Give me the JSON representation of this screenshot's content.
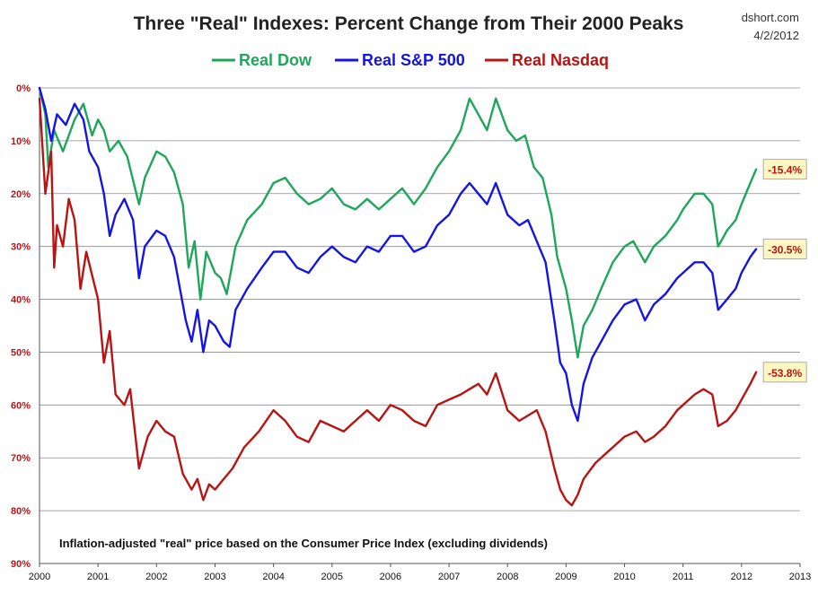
{
  "chart_data": {
    "type": "line",
    "title": "Three \"Real\" Indexes: Percent Change from Their 2000 Peaks",
    "source": "dshort.com",
    "date": "4/2/2012",
    "note": "Inflation-adjusted \"real\" price based on the Consumer Price Index (excluding dividends)",
    "xlim": [
      2000,
      2013
    ],
    "ylim": [
      0,
      90
    ],
    "y_inverted": true,
    "x_ticks": [
      "2000",
      "2001",
      "2002",
      "2003",
      "2004",
      "2005",
      "2006",
      "2007",
      "2008",
      "2009",
      "2010",
      "2011",
      "2012",
      "2013"
    ],
    "y_ticks": [
      "0%",
      "10%",
      "20%",
      "30%",
      "40%",
      "50%",
      "60%",
      "70%",
      "80%",
      "90%"
    ],
    "grid": true,
    "legend_position": "top-center",
    "series": [
      {
        "name": "Real Dow",
        "color": "#1ea65a",
        "end_label": "-15.4%",
        "points": [
          [
            2000.0,
            0
          ],
          [
            2000.1,
            5
          ],
          [
            2000.15,
            15
          ],
          [
            2000.25,
            8
          ],
          [
            2000.4,
            12
          ],
          [
            2000.6,
            6
          ],
          [
            2000.75,
            3
          ],
          [
            2000.9,
            9
          ],
          [
            2001.0,
            6
          ],
          [
            2001.1,
            8
          ],
          [
            2001.2,
            12
          ],
          [
            2001.35,
            10
          ],
          [
            2001.5,
            13
          ],
          [
            2001.7,
            22
          ],
          [
            2001.8,
            17
          ],
          [
            2002.0,
            12
          ],
          [
            2002.15,
            13
          ],
          [
            2002.3,
            16
          ],
          [
            2002.45,
            22
          ],
          [
            2002.55,
            34
          ],
          [
            2002.65,
            29
          ],
          [
            2002.75,
            40
          ],
          [
            2002.85,
            31
          ],
          [
            2003.0,
            35
          ],
          [
            2003.1,
            36
          ],
          [
            2003.2,
            39
          ],
          [
            2003.35,
            30
          ],
          [
            2003.55,
            25
          ],
          [
            2003.8,
            22
          ],
          [
            2004.0,
            18
          ],
          [
            2004.2,
            17
          ],
          [
            2004.4,
            20
          ],
          [
            2004.6,
            22
          ],
          [
            2004.8,
            21
          ],
          [
            2005.0,
            19
          ],
          [
            2005.2,
            22
          ],
          [
            2005.4,
            23
          ],
          [
            2005.6,
            21
          ],
          [
            2005.8,
            23
          ],
          [
            2006.0,
            21
          ],
          [
            2006.2,
            19
          ],
          [
            2006.4,
            22
          ],
          [
            2006.6,
            19
          ],
          [
            2006.8,
            15
          ],
          [
            2007.0,
            12
          ],
          [
            2007.2,
            8
          ],
          [
            2007.35,
            2
          ],
          [
            2007.5,
            5
          ],
          [
            2007.65,
            8
          ],
          [
            2007.8,
            2
          ],
          [
            2008.0,
            8
          ],
          [
            2008.15,
            10
          ],
          [
            2008.3,
            9
          ],
          [
            2008.45,
            15
          ],
          [
            2008.6,
            17
          ],
          [
            2008.75,
            24
          ],
          [
            2008.85,
            32
          ],
          [
            2009.0,
            38
          ],
          [
            2009.1,
            44
          ],
          [
            2009.2,
            51
          ],
          [
            2009.3,
            45
          ],
          [
            2009.45,
            42
          ],
          [
            2009.6,
            38
          ],
          [
            2009.8,
            33
          ],
          [
            2010.0,
            30
          ],
          [
            2010.15,
            29
          ],
          [
            2010.35,
            33
          ],
          [
            2010.5,
            30
          ],
          [
            2010.7,
            28
          ],
          [
            2010.9,
            25
          ],
          [
            2011.0,
            23
          ],
          [
            2011.2,
            20
          ],
          [
            2011.35,
            20
          ],
          [
            2011.5,
            22
          ],
          [
            2011.6,
            30
          ],
          [
            2011.75,
            27
          ],
          [
            2011.9,
            25
          ],
          [
            2012.0,
            22
          ],
          [
            2012.15,
            18
          ],
          [
            2012.25,
            15.4
          ]
        ]
      },
      {
        "name": "Real S&P 500",
        "color": "#1414e6",
        "end_label": "-30.5%",
        "points": [
          [
            2000.0,
            0
          ],
          [
            2000.1,
            4
          ],
          [
            2000.2,
            10
          ],
          [
            2000.3,
            5
          ],
          [
            2000.45,
            7
          ],
          [
            2000.6,
            3
          ],
          [
            2000.75,
            6
          ],
          [
            2000.85,
            12
          ],
          [
            2001.0,
            15
          ],
          [
            2001.1,
            20
          ],
          [
            2001.2,
            28
          ],
          [
            2001.3,
            24
          ],
          [
            2001.45,
            21
          ],
          [
            2001.6,
            25
          ],
          [
            2001.7,
            36
          ],
          [
            2001.8,
            30
          ],
          [
            2002.0,
            27
          ],
          [
            2002.15,
            28
          ],
          [
            2002.3,
            32
          ],
          [
            2002.4,
            38
          ],
          [
            2002.5,
            44
          ],
          [
            2002.6,
            48
          ],
          [
            2002.7,
            42
          ],
          [
            2002.8,
            50
          ],
          [
            2002.9,
            44
          ],
          [
            2003.0,
            45
          ],
          [
            2003.15,
            48
          ],
          [
            2003.25,
            49
          ],
          [
            2003.35,
            42
          ],
          [
            2003.55,
            38
          ],
          [
            2003.8,
            34
          ],
          [
            2004.0,
            31
          ],
          [
            2004.2,
            31
          ],
          [
            2004.4,
            34
          ],
          [
            2004.6,
            35
          ],
          [
            2004.8,
            32
          ],
          [
            2005.0,
            30
          ],
          [
            2005.2,
            32
          ],
          [
            2005.4,
            33
          ],
          [
            2005.6,
            30
          ],
          [
            2005.8,
            31
          ],
          [
            2006.0,
            28
          ],
          [
            2006.2,
            28
          ],
          [
            2006.4,
            31
          ],
          [
            2006.6,
            30
          ],
          [
            2006.8,
            26
          ],
          [
            2007.0,
            24
          ],
          [
            2007.2,
            20
          ],
          [
            2007.35,
            18
          ],
          [
            2007.5,
            20
          ],
          [
            2007.65,
            22
          ],
          [
            2007.8,
            18
          ],
          [
            2008.0,
            24
          ],
          [
            2008.2,
            26
          ],
          [
            2008.35,
            25
          ],
          [
            2008.5,
            29
          ],
          [
            2008.65,
            33
          ],
          [
            2008.8,
            44
          ],
          [
            2008.9,
            52
          ],
          [
            2009.0,
            54
          ],
          [
            2009.1,
            60
          ],
          [
            2009.2,
            63
          ],
          [
            2009.3,
            56
          ],
          [
            2009.45,
            51
          ],
          [
            2009.6,
            48
          ],
          [
            2009.8,
            44
          ],
          [
            2010.0,
            41
          ],
          [
            2010.2,
            40
          ],
          [
            2010.35,
            44
          ],
          [
            2010.5,
            41
          ],
          [
            2010.7,
            39
          ],
          [
            2010.9,
            36
          ],
          [
            2011.0,
            35
          ],
          [
            2011.2,
            33
          ],
          [
            2011.35,
            33
          ],
          [
            2011.5,
            35
          ],
          [
            2011.6,
            42
          ],
          [
            2011.75,
            40
          ],
          [
            2011.9,
            38
          ],
          [
            2012.0,
            35
          ],
          [
            2012.15,
            32
          ],
          [
            2012.25,
            30.5
          ]
        ]
      },
      {
        "name": "Real Nasdaq",
        "color": "#b81414",
        "end_label": "-53.8%",
        "points": [
          [
            2000.0,
            2
          ],
          [
            2000.1,
            20
          ],
          [
            2000.2,
            12
          ],
          [
            2000.25,
            34
          ],
          [
            2000.3,
            26
          ],
          [
            2000.4,
            30
          ],
          [
            2000.5,
            21
          ],
          [
            2000.6,
            25
          ],
          [
            2000.7,
            38
          ],
          [
            2000.8,
            31
          ],
          [
            2001.0,
            40
          ],
          [
            2001.1,
            52
          ],
          [
            2001.2,
            46
          ],
          [
            2001.3,
            58
          ],
          [
            2001.45,
            60
          ],
          [
            2001.55,
            57
          ],
          [
            2001.7,
            72
          ],
          [
            2001.85,
            66
          ],
          [
            2002.0,
            63
          ],
          [
            2002.15,
            65
          ],
          [
            2002.3,
            66
          ],
          [
            2002.45,
            73
          ],
          [
            2002.6,
            76
          ],
          [
            2002.7,
            74
          ],
          [
            2002.8,
            78
          ],
          [
            2002.9,
            75
          ],
          [
            2003.0,
            76
          ],
          [
            2003.15,
            74
          ],
          [
            2003.3,
            72
          ],
          [
            2003.5,
            68
          ],
          [
            2003.75,
            65
          ],
          [
            2004.0,
            61
          ],
          [
            2004.2,
            63
          ],
          [
            2004.4,
            66
          ],
          [
            2004.6,
            67
          ],
          [
            2004.8,
            63
          ],
          [
            2005.0,
            64
          ],
          [
            2005.2,
            65
          ],
          [
            2005.4,
            63
          ],
          [
            2005.6,
            61
          ],
          [
            2005.8,
            63
          ],
          [
            2006.0,
            60
          ],
          [
            2006.2,
            61
          ],
          [
            2006.4,
            63
          ],
          [
            2006.6,
            64
          ],
          [
            2006.8,
            60
          ],
          [
            2007.0,
            59
          ],
          [
            2007.2,
            58
          ],
          [
            2007.35,
            57
          ],
          [
            2007.5,
            56
          ],
          [
            2007.65,
            58
          ],
          [
            2007.8,
            54
          ],
          [
            2008.0,
            61
          ],
          [
            2008.2,
            63
          ],
          [
            2008.35,
            62
          ],
          [
            2008.5,
            61
          ],
          [
            2008.65,
            65
          ],
          [
            2008.8,
            72
          ],
          [
            2008.9,
            76
          ],
          [
            2009.0,
            78
          ],
          [
            2009.1,
            79
          ],
          [
            2009.2,
            77
          ],
          [
            2009.3,
            74
          ],
          [
            2009.5,
            71
          ],
          [
            2009.7,
            69
          ],
          [
            2009.9,
            67
          ],
          [
            2010.0,
            66
          ],
          [
            2010.2,
            65
          ],
          [
            2010.35,
            67
          ],
          [
            2010.5,
            66
          ],
          [
            2010.7,
            64
          ],
          [
            2010.9,
            61
          ],
          [
            2011.0,
            60
          ],
          [
            2011.2,
            58
          ],
          [
            2011.35,
            57
          ],
          [
            2011.5,
            58
          ],
          [
            2011.6,
            64
          ],
          [
            2011.75,
            63
          ],
          [
            2011.9,
            61
          ],
          [
            2012.0,
            59
          ],
          [
            2012.15,
            56
          ],
          [
            2012.25,
            53.8
          ]
        ]
      }
    ]
  }
}
